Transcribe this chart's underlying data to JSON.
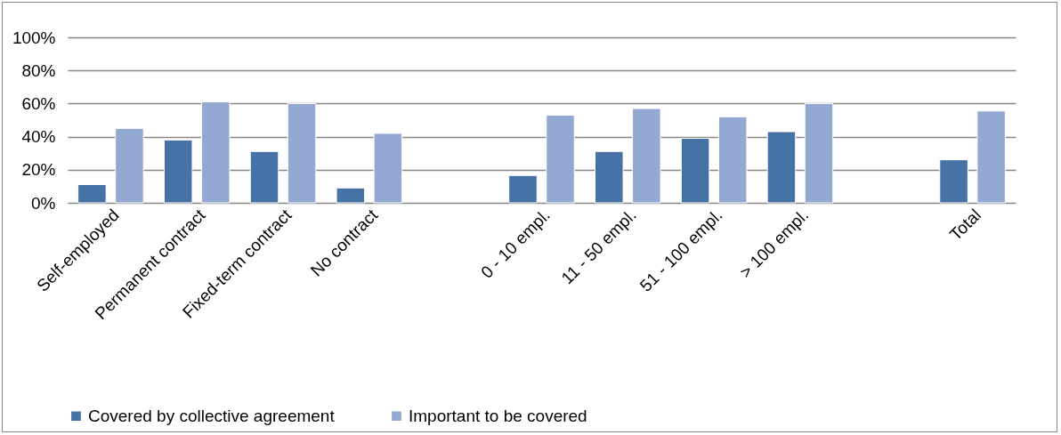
{
  "chart_data": {
    "type": "bar",
    "categories": [
      "Self-employed",
      "Permanent contract",
      "Fixed-term contract",
      "No contract",
      null,
      "0 - 10  empl.",
      "11 - 50 empl.",
      "51 - 100  empl.",
      "> 100  empl.",
      null,
      "Total"
    ],
    "series": [
      {
        "name": "Covered by collective agreement",
        "color": "#4672a6",
        "values": [
          11,
          38,
          31,
          9,
          null,
          16.5,
          31,
          39,
          43,
          null,
          26
        ]
      },
      {
        "name": "Important to be covered",
        "color": "#94a9d1",
        "values": [
          45,
          61,
          60,
          42,
          null,
          53,
          57,
          52,
          60,
          null,
          55.5
        ]
      }
    ],
    "ylim": [
      0,
      100
    ],
    "yticks": [
      {
        "value": 0,
        "label": "0%"
      },
      {
        "value": 20,
        "label": "20%"
      },
      {
        "value": 40,
        "label": "40%"
      },
      {
        "value": 60,
        "label": "60%"
      },
      {
        "value": 80,
        "label": "80%"
      },
      {
        "value": 100,
        "label": "100%"
      }
    ],
    "grid": "y",
    "legend": "bottom"
  }
}
